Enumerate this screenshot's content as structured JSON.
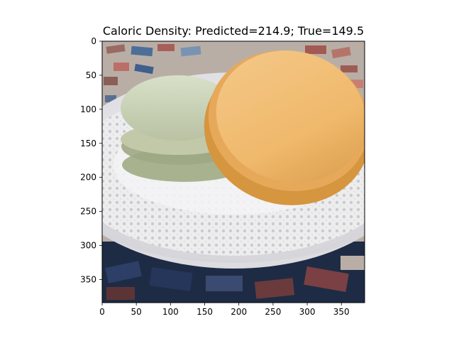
{
  "chart_data": {
    "type": "image",
    "title": "Caloric Density: Predicted=214.9; True=149.5",
    "xlabel": "",
    "ylabel": "",
    "xlim": [
      0,
      384
    ],
    "ylim": [
      384,
      0
    ],
    "x_ticks": [
      0,
      50,
      100,
      150,
      200,
      250,
      300,
      350
    ],
    "y_ticks": [
      0,
      50,
      100,
      150,
      200,
      250,
      300,
      350
    ],
    "grid": false,
    "image_subject": "Two macarons (pale green and orange) on a white lace doily on a plate, over a mosaic tile table"
  }
}
